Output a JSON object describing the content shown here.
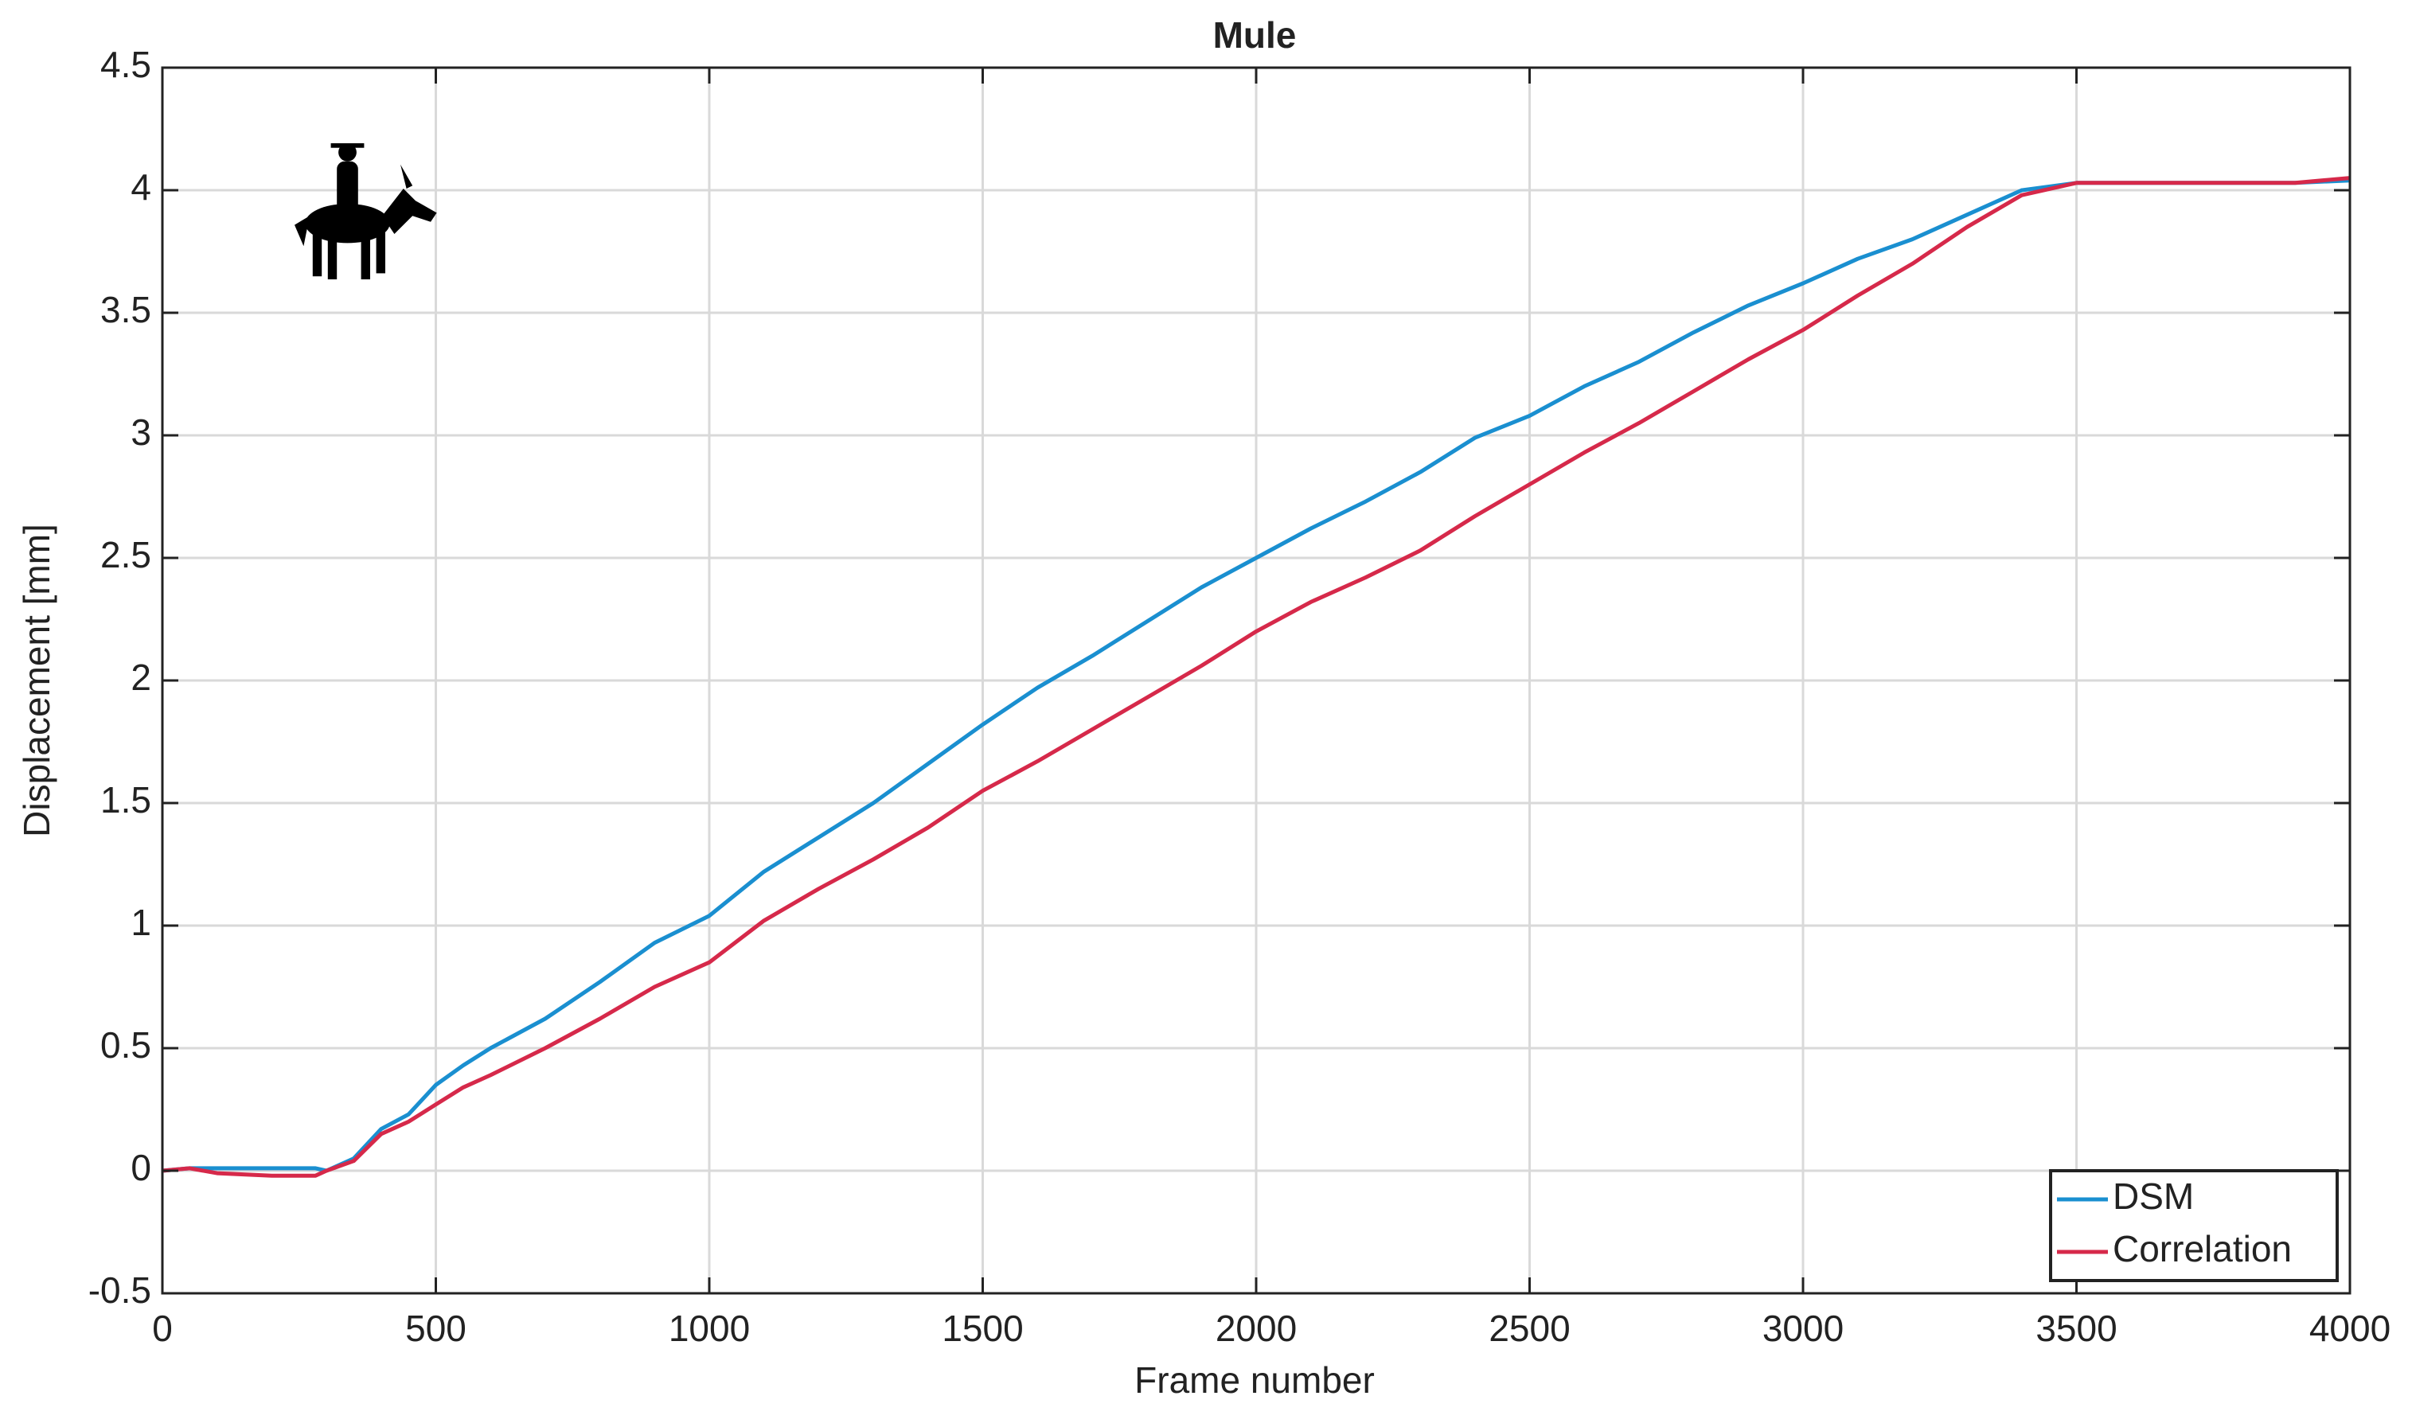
{
  "chart_data": {
    "type": "line",
    "title": "Mule",
    "x_label": "Frame number",
    "y_label": "Displacement [mm]",
    "x": [
      0,
      50,
      100,
      200,
      280,
      300,
      350,
      400,
      450,
      500,
      550,
      600,
      700,
      800,
      900,
      1000,
      1100,
      1200,
      1300,
      1400,
      1500,
      1600,
      1700,
      1800,
      1900,
      2000,
      2100,
      2200,
      2300,
      2400,
      2500,
      2600,
      2700,
      2800,
      2900,
      3000,
      3100,
      3200,
      3300,
      3400,
      3500,
      3600,
      3700,
      3800,
      3900,
      4000
    ],
    "series": [
      {
        "name": "DSM",
        "color": "#1a8fd0",
        "values": [
          0,
          0.01,
          0.01,
          0.01,
          0.01,
          0.0,
          0.05,
          0.17,
          0.23,
          0.35,
          0.43,
          0.5,
          0.62,
          0.77,
          0.93,
          1.04,
          1.22,
          1.36,
          1.5,
          1.66,
          1.82,
          1.97,
          2.1,
          2.24,
          2.38,
          2.5,
          2.62,
          2.73,
          2.85,
          2.99,
          3.08,
          3.2,
          3.3,
          3.42,
          3.53,
          3.62,
          3.72,
          3.8,
          3.9,
          4.0,
          4.03,
          4.03,
          4.03,
          4.03,
          4.03,
          4.04
        ]
      },
      {
        "name": "Correlation",
        "color": "#d6294a",
        "values": [
          0,
          0.01,
          -0.01,
          -0.02,
          -0.02,
          0.0,
          0.04,
          0.15,
          0.2,
          0.27,
          0.34,
          0.39,
          0.5,
          0.62,
          0.75,
          0.85,
          1.02,
          1.15,
          1.27,
          1.4,
          1.55,
          1.67,
          1.8,
          1.93,
          2.06,
          2.2,
          2.32,
          2.42,
          2.53,
          2.67,
          2.8,
          2.93,
          3.05,
          3.18,
          3.31,
          3.43,
          3.57,
          3.7,
          3.85,
          3.98,
          4.03,
          4.03,
          4.03,
          4.03,
          4.03,
          4.05
        ]
      }
    ],
    "xlim": [
      0,
      4000
    ],
    "xticks": [
      0,
      500,
      1000,
      1500,
      2000,
      2500,
      3000,
      3500,
      4000
    ],
    "ylim": [
      -0.5,
      4.5
    ],
    "yticks": [
      -0.5,
      0,
      0.5,
      1,
      1.5,
      2,
      2.5,
      3,
      3.5,
      4,
      4.5
    ],
    "grid": true,
    "legend": "southeast"
  }
}
